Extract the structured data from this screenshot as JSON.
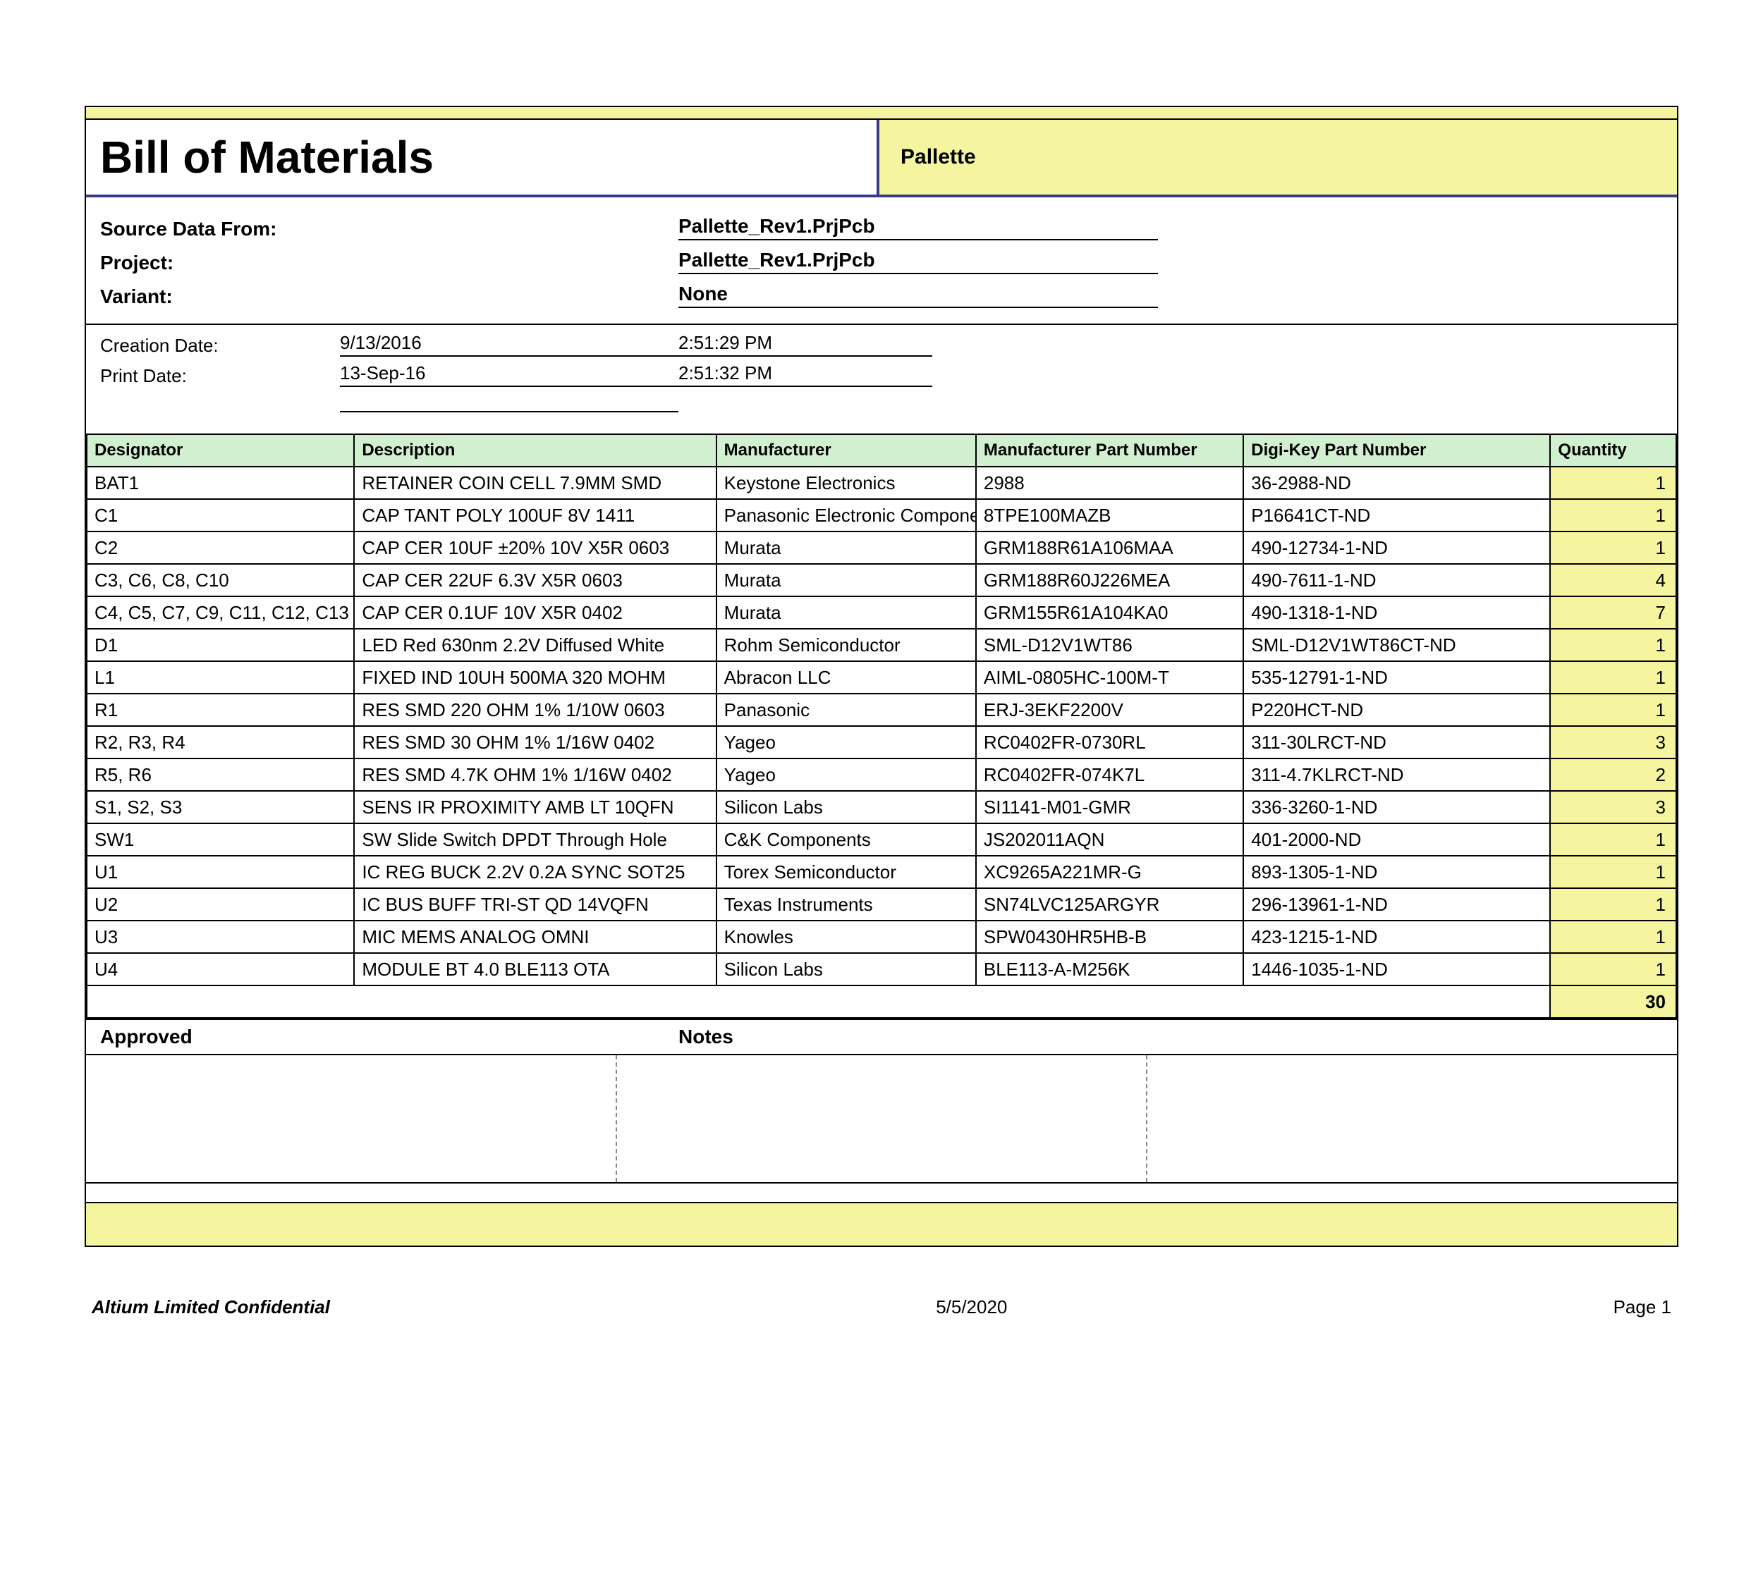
{
  "header": {
    "title": "Bill of Materials",
    "project_name": "Pallette"
  },
  "meta": {
    "source_label": "Source Data From:",
    "source_value": "Pallette_Rev1.PrjPcb",
    "project_label": "Project:",
    "project_value": "Pallette_Rev1.PrjPcb",
    "variant_label": "Variant:",
    "variant_value": "None"
  },
  "dates": {
    "creation_label": "Creation Date:",
    "creation_date": "9/13/2016",
    "creation_time": "2:51:29 PM",
    "print_label": "Print Date:",
    "print_date": "13-Sep-16",
    "print_time": "2:51:32 PM"
  },
  "table": {
    "columns": [
      "Designator",
      "Description",
      "Manufacturer",
      "Manufacturer Part Number",
      "Digi-Key Part Number",
      "Quantity"
    ],
    "rows": [
      [
        "BAT1",
        "RETAINER COIN CELL 7.9MM SMD",
        "Keystone Electronics",
        "2988",
        "36-2988-ND",
        "1"
      ],
      [
        "C1",
        "CAP TANT POLY 100UF 8V 1411",
        "Panasonic Electronic Components",
        "8TPE100MAZB",
        "P16641CT-ND",
        "1"
      ],
      [
        "C2",
        "CAP CER 10UF ±20% 10V X5R 0603",
        "Murata",
        "GRM188R61A106MAA",
        "490-12734-1-ND",
        "1"
      ],
      [
        "C3, C6, C8, C10",
        "CAP CER 22UF 6.3V X5R 0603",
        "Murata",
        "GRM188R60J226MEA",
        "490-7611-1-ND",
        "4"
      ],
      [
        "C4, C5, C7, C9, C11, C12, C13",
        "CAP CER 0.1UF 10V X5R 0402",
        "Murata",
        "GRM155R61A104KA0",
        "490-1318-1-ND",
        "7"
      ],
      [
        "D1",
        "LED Red 630nm 2.2V Diffused White",
        "Rohm Semiconductor",
        "SML-D12V1WT86",
        "SML-D12V1WT86CT-ND",
        "1"
      ],
      [
        "L1",
        "FIXED IND 10UH 500MA 320 MOHM",
        "Abracon LLC",
        "AIML-0805HC-100M-T",
        "535-12791-1-ND",
        "1"
      ],
      [
        "R1",
        "RES SMD 220 OHM 1% 1/10W 0603",
        "Panasonic",
        "ERJ-3EKF2200V",
        "P220HCT-ND",
        "1"
      ],
      [
        "R2, R3, R4",
        "RES SMD 30 OHM 1% 1/16W 0402",
        "Yageo",
        "RC0402FR-0730RL",
        "311-30LRCT-ND",
        "3"
      ],
      [
        "R5, R6",
        "RES SMD 4.7K OHM 1% 1/16W 0402",
        "Yageo",
        "RC0402FR-074K7L",
        "311-4.7KLRCT-ND",
        "2"
      ],
      [
        "S1, S2, S3",
        "SENS IR PROXIMITY AMB LT 10QFN",
        "Silicon Labs",
        "SI1141-M01-GMR",
        "336-3260-1-ND",
        "3"
      ],
      [
        "SW1",
        "SW Slide Switch DPDT Through Hole",
        "C&K Components",
        "JS202011AQN",
        "401-2000-ND",
        "1"
      ],
      [
        "U1",
        "IC REG BUCK 2.2V 0.2A SYNC SOT25",
        "Torex Semiconductor",
        "XC9265A221MR-G",
        "893-1305-1-ND",
        "1"
      ],
      [
        "U2",
        "IC BUS BUFF TRI-ST QD 14VQFN",
        "Texas Instruments",
        "SN74LVC125ARGYR",
        "296-13961-1-ND",
        "1"
      ],
      [
        "U3",
        "MIC MEMS ANALOG OMNI",
        "Knowles",
        "SPW0430HR5HB-B",
        "423-1215-1-ND",
        "1"
      ],
      [
        "U4",
        "MODULE BT 4.0 BLE113 OTA",
        "Silicon Labs",
        "BLE113-A-M256K",
        "1446-1035-1-ND",
        "1"
      ]
    ],
    "total": "30"
  },
  "approved": {
    "approved_label": "Approved",
    "notes_label": "Notes"
  },
  "footer": {
    "left": "Altium Limited Confidential",
    "middle": "5/5/2020",
    "right": "Page 1"
  }
}
